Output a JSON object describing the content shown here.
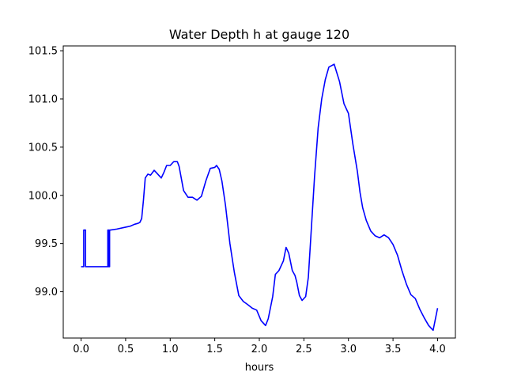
{
  "chart_data": {
    "type": "line",
    "title": "Water Depth h at gauge 120",
    "xlabel": "hours",
    "ylabel": "",
    "xlim": [
      -0.2,
      4.2
    ],
    "ylim": [
      98.52,
      101.55
    ],
    "xticks": [
      0.0,
      0.5,
      1.0,
      1.5,
      2.0,
      2.5,
      3.0,
      3.5,
      4.0
    ],
    "xtick_labels": [
      "0.0",
      "0.5",
      "1.0",
      "1.5",
      "2.0",
      "2.5",
      "3.0",
      "3.5",
      "4.0"
    ],
    "yticks": [
      99.0,
      99.5,
      100.0,
      100.5,
      101.0,
      101.5
    ],
    "ytick_labels": [
      "99.0",
      "99.5",
      "100.0",
      "100.5",
      "101.0",
      "101.5"
    ],
    "grid": false,
    "series": [
      {
        "color": "#0000ff",
        "x": [
          0.0,
          0.02,
          0.03,
          0.03,
          0.05,
          0.05,
          0.06,
          0.06,
          0.1,
          0.2,
          0.28,
          0.3,
          0.3,
          0.31,
          0.31,
          0.32,
          0.32,
          0.33,
          0.33,
          0.4,
          0.5,
          0.55,
          0.6,
          0.64,
          0.66,
          0.68,
          0.7,
          0.72,
          0.75,
          0.78,
          0.82,
          0.86,
          0.9,
          0.93,
          0.96,
          1.0,
          1.04,
          1.08,
          1.1,
          1.15,
          1.2,
          1.25,
          1.3,
          1.35,
          1.4,
          1.45,
          1.5,
          1.52,
          1.55,
          1.58,
          1.62,
          1.67,
          1.72,
          1.77,
          1.82,
          1.85,
          1.88,
          1.92,
          1.97,
          2.02,
          2.07,
          2.1,
          2.15,
          2.18,
          2.22,
          2.27,
          2.3,
          2.33,
          2.37,
          2.4,
          2.42,
          2.45,
          2.48,
          2.52,
          2.55,
          2.58,
          2.62,
          2.66,
          2.7,
          2.74,
          2.78,
          2.84,
          2.9,
          2.95,
          3.0,
          3.05,
          3.1,
          3.13,
          3.16,
          3.2,
          3.25,
          3.3,
          3.35,
          3.4,
          3.45,
          3.5,
          3.55,
          3.6,
          3.65,
          3.7,
          3.75,
          3.8,
          3.85,
          3.9,
          3.95,
          4.0
        ],
        "y": [
          99.26,
          99.26,
          99.26,
          99.64,
          99.64,
          99.26,
          99.26,
          99.26,
          99.26,
          99.26,
          99.26,
          99.26,
          99.64,
          99.64,
          99.26,
          99.26,
          99.64,
          99.64,
          99.64,
          99.65,
          99.67,
          99.68,
          99.7,
          99.71,
          99.72,
          99.76,
          99.95,
          100.18,
          100.22,
          100.21,
          100.26,
          100.22,
          100.18,
          100.24,
          100.31,
          100.31,
          100.35,
          100.35,
          100.3,
          100.05,
          99.98,
          99.98,
          99.95,
          99.99,
          100.15,
          100.28,
          100.29,
          100.31,
          100.27,
          100.15,
          99.9,
          99.5,
          99.2,
          98.96,
          98.9,
          98.88,
          98.86,
          98.83,
          98.81,
          98.7,
          98.65,
          98.72,
          98.95,
          99.18,
          99.22,
          99.32,
          99.46,
          99.4,
          99.22,
          99.17,
          99.1,
          98.96,
          98.91,
          98.95,
          99.15,
          99.6,
          100.2,
          100.7,
          101.0,
          101.2,
          101.33,
          101.36,
          101.18,
          100.95,
          100.85,
          100.53,
          100.25,
          100.03,
          99.87,
          99.74,
          99.63,
          99.58,
          99.56,
          99.59,
          99.56,
          99.49,
          99.38,
          99.22,
          99.08,
          98.97,
          98.93,
          98.82,
          98.73,
          98.65,
          98.6,
          98.83
        ]
      }
    ]
  }
}
